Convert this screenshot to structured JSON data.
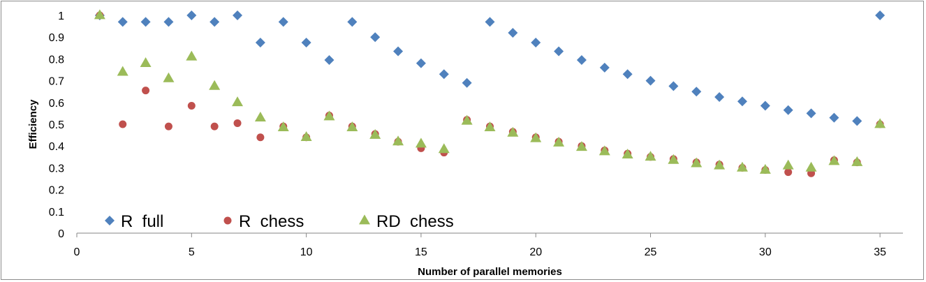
{
  "chart_data": {
    "type": "scatter",
    "xlabel": "Number of parallel memories",
    "ylabel": "Efficiency",
    "xlim": [
      0,
      36
    ],
    "ylim": [
      0,
      1
    ],
    "xticks": [
      "0",
      "5",
      "10",
      "15",
      "20",
      "25",
      "30",
      "35"
    ],
    "yticks": [
      "0",
      "0.1",
      "0.2",
      "0.3",
      "0.4",
      "0.5",
      "0.6",
      "0.7",
      "0.8",
      "0.9",
      "1"
    ],
    "grid": false,
    "legend_position": "bottom-left",
    "series": [
      {
        "name": "R  full",
        "marker": "diamond",
        "color": "#4f81bd",
        "x": [
          1,
          2,
          3,
          4,
          5,
          6,
          7,
          8,
          9,
          10,
          11,
          12,
          13,
          14,
          15,
          16,
          17,
          18,
          19,
          20,
          21,
          22,
          23,
          24,
          25,
          26,
          27,
          28,
          29,
          30,
          31,
          32,
          33,
          34,
          35
        ],
        "y": [
          1,
          0.97,
          0.97,
          0.97,
          1,
          0.97,
          1,
          0.875,
          0.97,
          0.875,
          0.795,
          0.97,
          0.9,
          0.835,
          0.78,
          0.73,
          0.69,
          0.97,
          0.92,
          0.875,
          0.835,
          0.795,
          0.76,
          0.73,
          0.7,
          0.675,
          0.65,
          0.625,
          0.605,
          0.585,
          0.565,
          0.55,
          0.53,
          0.515,
          1
        ]
      },
      {
        "name": "R  chess",
        "marker": "circle",
        "color": "#c0504d",
        "x": [
          1,
          2,
          3,
          4,
          5,
          6,
          7,
          8,
          9,
          10,
          11,
          12,
          13,
          14,
          15,
          16,
          17,
          18,
          19,
          20,
          21,
          22,
          23,
          24,
          25,
          26,
          27,
          28,
          29,
          30,
          31,
          32,
          33,
          34,
          35
        ],
        "y": [
          1,
          0.5,
          0.655,
          0.49,
          0.585,
          0.49,
          0.505,
          0.44,
          0.49,
          0.44,
          0.54,
          0.49,
          0.455,
          0.42,
          0.39,
          0.37,
          0.52,
          0.49,
          0.465,
          0.44,
          0.42,
          0.4,
          0.38,
          0.365,
          0.35,
          0.34,
          0.325,
          0.315,
          0.3,
          0.29,
          0.28,
          0.275,
          0.335,
          0.325,
          0.5
        ]
      },
      {
        "name": "RD  chess",
        "marker": "triangle",
        "color": "#9bbb59",
        "x": [
          1,
          2,
          3,
          4,
          5,
          6,
          7,
          8,
          9,
          10,
          11,
          12,
          13,
          14,
          15,
          16,
          17,
          18,
          19,
          20,
          21,
          22,
          23,
          24,
          25,
          26,
          27,
          28,
          29,
          30,
          31,
          32,
          33,
          34,
          35
        ],
        "y": [
          1,
          0.74,
          0.78,
          0.71,
          0.81,
          0.675,
          0.6,
          0.53,
          0.485,
          0.44,
          0.535,
          0.485,
          0.45,
          0.42,
          0.41,
          0.385,
          0.515,
          0.485,
          0.46,
          0.435,
          0.415,
          0.395,
          0.375,
          0.36,
          0.35,
          0.335,
          0.32,
          0.31,
          0.3,
          0.29,
          0.31,
          0.3,
          0.33,
          0.325,
          0.5
        ]
      }
    ]
  }
}
